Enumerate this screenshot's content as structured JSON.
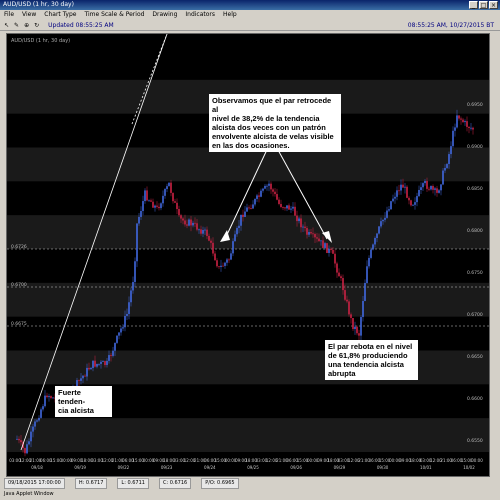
{
  "window": {
    "title": "AUD/USD (1 hr, 30 day)",
    "controls": [
      "_",
      "□",
      "×"
    ]
  },
  "menu": [
    "File",
    "View",
    "Chart Type",
    "Time Scale & Period",
    "Drawing",
    "Indicators",
    "Help"
  ],
  "toolbar": {
    "icons": [
      "pointer-icon",
      "draw-icon",
      "zoom-icon",
      "refresh-icon"
    ],
    "updated": "Updated 08:55:25 AM",
    "info": "08:55:25 AM, 10/27/2015 BT"
  },
  "chart": {
    "symbol_label": "AUD/USD (1 hr, 30 day)",
    "y_axis_labels": [
      "0.6950",
      "0.6900",
      "0.6850",
      "0.6800",
      "0.6750",
      "0.6700",
      "0.6650",
      "0.6600",
      "0.6550"
    ],
    "retracement_labels": [
      "0.6726",
      "0.6700",
      "0.6675"
    ],
    "x_axis_time_labels": [
      "03:00",
      "12:00",
      "21:00",
      "06:00",
      "15:00",
      "00:00",
      "09:00",
      "18:00",
      "03:00",
      "12:00",
      "21:00",
      "06:00",
      "15:00",
      "00:00",
      "09:00",
      "18:00",
      "03:00",
      "12:00",
      "21:00",
      "06:00",
      "15:00",
      "00:00",
      "09:00",
      "18:00",
      "03:00",
      "12:00",
      "21:00",
      "06:00",
      "15:00",
      "00:00",
      "09:00",
      "18:00",
      "03:00",
      "12:00",
      "21:00",
      "06:00",
      "15:00",
      "00:00",
      "09:00",
      "18:00",
      "03:00",
      "12:00",
      "21:00",
      "06:00",
      "15:00",
      "00:00"
    ],
    "x_axis_date_labels": [
      "09/18",
      "09/19",
      "09/22",
      "09/23",
      "09/24",
      "09/25",
      "09/26",
      "09/29",
      "09/30",
      "10/01",
      "10/02"
    ],
    "colors": {
      "background": "#000000",
      "band": "#1a1a1a",
      "bull": "#4169e1",
      "bear": "#cc2244",
      "trendline": "#ffffff"
    }
  },
  "callouts": {
    "top": "Observamos que el par retrocede al\nnivel de 38,2% de la tendencia\nalcista dos veces con un patrón\nenvolvente alcista de velas visible\nen las dos ocasiones.",
    "bottom_right": "El par rebota en el nivel\nde 61,8% produciendo\nuna tendencia alcista\nabrupta",
    "bottom_left": "Fuerte tenden-\ncia alcista"
  },
  "status": [
    "09/18/2015 17:00:00",
    "H: 0.6717",
    "L: 0.6711",
    "C: 0.6716",
    "P/O: 0.6965"
  ],
  "footer": "Java Applet Window"
}
